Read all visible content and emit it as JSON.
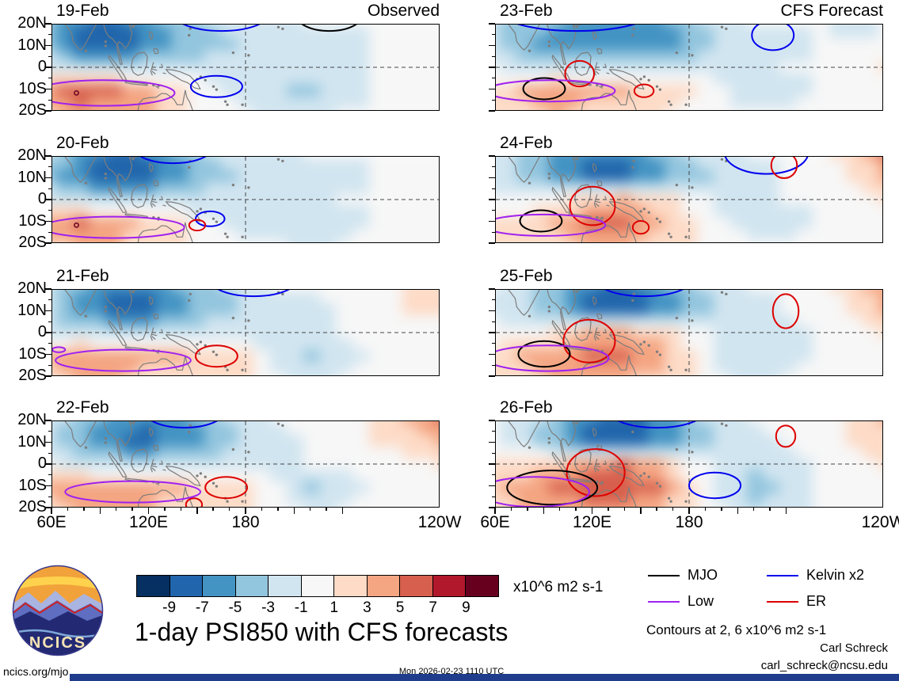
{
  "title": "1-day PSI850 with CFS forecasts",
  "units_label": "x10^6 m2 s-1",
  "contour_note": "Contours at 2, 6 x10^6 m2 s-1",
  "credits": {
    "name": "Carl Schreck",
    "email": "carl_schreck@ncsu.edu"
  },
  "footer": {
    "site": "ncics.org/mjo",
    "timestamp": "Mon 2026-02-23 1110 UTC"
  },
  "logo": {
    "text": "NCICS"
  },
  "meta": {
    "observed_label": "Observed",
    "forecast_label": "CFS Forecast"
  },
  "legend": {
    "items": [
      {
        "label": "MJO",
        "color": "#000000"
      },
      {
        "label": "Kelvin x2",
        "color": "#0000ee"
      },
      {
        "label": "Low",
        "color": "#a020f0"
      },
      {
        "label": "ER",
        "color": "#dd0000"
      }
    ]
  },
  "wave_colors": {
    "MJO": "#000000",
    "Low": "#a020f0",
    "Kelvin": "#0000ee",
    "ER": "#dd0000"
  },
  "colorbar": {
    "tick_labels": [
      "-9",
      "-7",
      "-5",
      "-3",
      "-1",
      "1",
      "3",
      "5",
      "7",
      "9"
    ],
    "colors": [
      "#053061",
      "#2166ac",
      "#4393c3",
      "#92c5de",
      "#d1e5f0",
      "#f7f7f7",
      "#fddbc7",
      "#f4a582",
      "#d6604d",
      "#b2182b",
      "#67001f"
    ]
  },
  "axes": {
    "lat_labels": [
      "20N",
      "10N",
      "0",
      "10S",
      "20S"
    ],
    "lat_pcts": [
      0,
      25,
      50,
      75,
      100
    ],
    "lon_labels": [
      "60E",
      "120E",
      "180",
      "120W"
    ],
    "lon_pcts": [
      0,
      25,
      50,
      100
    ]
  },
  "chart_data": {
    "type": "heatmap",
    "variable": "PSI850 streamfunction anomaly",
    "units": "x10^6 m2 s-1",
    "lon_grid": [
      60,
      75,
      90,
      105,
      120,
      135,
      150,
      165,
      180,
      195,
      210,
      225,
      240
    ],
    "lat_grid": [
      20,
      10,
      0,
      -10,
      -20
    ],
    "contour_levels": [
      2,
      6
    ],
    "panels": [
      {
        "date": "19-Feb",
        "kind": "Observed",
        "values": [
          [
            -4,
            -7,
            -8,
            -6,
            -4,
            -3,
            -2,
            -2,
            -1,
            -1,
            -1,
            0,
            0
          ],
          [
            -4,
            -8,
            -9,
            -7,
            -5,
            -4,
            -3,
            -2,
            -2,
            -2,
            -1,
            -1,
            0
          ],
          [
            -2,
            -3,
            -3,
            -3,
            -2,
            -2,
            -2,
            -2,
            -2,
            -2,
            -1,
            0,
            0
          ],
          [
            4,
            6,
            5,
            3,
            1,
            -1,
            -2,
            -3,
            -4,
            -2,
            -1,
            0,
            0
          ],
          [
            2,
            4,
            4,
            3,
            1,
            0,
            -1,
            -2,
            -2,
            -1,
            -1,
            0,
            0
          ]
        ],
        "contours": [
          {
            "wave": "Kelvin",
            "lon": 162,
            "lat": -9,
            "rlon": 16,
            "rlat": 5
          },
          {
            "wave": "Kelvin",
            "lon": 165,
            "lat": 24,
            "rlon": 28,
            "rlat": 7
          },
          {
            "wave": "Low",
            "lon": 92,
            "lat": -12,
            "rlon": 44,
            "rlat": 6
          },
          {
            "wave": "MJO",
            "lon": 232,
            "lat": 24,
            "rlon": 20,
            "rlat": 7
          }
        ],
        "spots": [
          [
            75,
            -12
          ]
        ]
      },
      {
        "date": "20-Feb",
        "kind": "Observed",
        "values": [
          [
            -3,
            -6,
            -8,
            -7,
            -5,
            -3,
            -2,
            -2,
            -1,
            -1,
            -1,
            0,
            0
          ],
          [
            -4,
            -7,
            -9,
            -8,
            -6,
            -4,
            -3,
            -2,
            -2,
            -2,
            -1,
            0,
            0
          ],
          [
            -2,
            -3,
            -3,
            -3,
            -3,
            -2,
            -2,
            -2,
            -2,
            -1,
            -1,
            0,
            0
          ],
          [
            4,
            5,
            4,
            2,
            1,
            -1,
            -2,
            -2,
            -3,
            -2,
            -1,
            0,
            0
          ],
          [
            2,
            3,
            3,
            2,
            1,
            0,
            -1,
            -1,
            -2,
            -1,
            0,
            0,
            0
          ]
        ],
        "contours": [
          {
            "wave": "Kelvin",
            "lon": 135,
            "lat": 24,
            "rlon": 24,
            "rlat": 7
          },
          {
            "wave": "Kelvin",
            "lon": 158,
            "lat": -9,
            "rlon": 9,
            "rlat": 3.5
          },
          {
            "wave": "ER",
            "lon": 150,
            "lat": -12,
            "rlon": 5,
            "rlat": 2.5
          },
          {
            "wave": "Low",
            "lon": 98,
            "lat": -13,
            "rlon": 44,
            "rlat": 5
          }
        ],
        "spots": [
          [
            75,
            -12
          ]
        ]
      },
      {
        "date": "21-Feb",
        "kind": "Observed",
        "values": [
          [
            -3,
            -5,
            -7,
            -7,
            -5,
            -4,
            -2,
            -1,
            -1,
            0,
            0,
            1,
            1
          ],
          [
            -3,
            -6,
            -8,
            -8,
            -6,
            -4,
            -3,
            -2,
            -2,
            -1,
            0,
            1,
            1
          ],
          [
            -2,
            -2,
            -3,
            -3,
            -3,
            -2,
            -2,
            -2,
            -2,
            -1,
            0,
            0,
            0
          ],
          [
            3,
            4,
            4,
            3,
            3,
            2,
            1,
            -2,
            -4,
            -2,
            -1,
            0,
            0
          ],
          [
            2,
            3,
            3,
            2,
            2,
            2,
            1,
            -1,
            -2,
            -1,
            0,
            0,
            0
          ]
        ],
        "contours": [
          {
            "wave": "Kelvin",
            "lon": 185,
            "lat": 24,
            "rlon": 26,
            "rlat": 7
          },
          {
            "wave": "ER",
            "lon": 162,
            "lat": -11,
            "rlon": 13,
            "rlat": 5
          },
          {
            "wave": "Low",
            "lon": 104,
            "lat": -13,
            "rlon": 42,
            "rlat": 5
          },
          {
            "wave": "Low",
            "lon": 64,
            "lat": -8,
            "rlon": 4,
            "rlat": 1.2
          }
        ],
        "spots": []
      },
      {
        "date": "22-Feb",
        "kind": "Observed",
        "values": [
          [
            -2,
            -4,
            -6,
            -7,
            -6,
            -4,
            -2,
            -1,
            0,
            0,
            1,
            3,
            5
          ],
          [
            -3,
            -5,
            -7,
            -8,
            -6,
            -5,
            -3,
            -2,
            -1,
            0,
            1,
            2,
            3
          ],
          [
            -1,
            -2,
            -3,
            -3,
            -3,
            -2,
            -2,
            -2,
            -1,
            -1,
            0,
            0,
            1
          ],
          [
            3,
            4,
            4,
            3,
            3,
            2,
            2,
            -1,
            -4,
            -2,
            -1,
            0,
            0
          ],
          [
            2,
            3,
            3,
            3,
            2,
            2,
            1,
            0,
            -2,
            -1,
            0,
            0,
            0
          ]
        ],
        "contours": [
          {
            "wave": "Kelvin",
            "lon": 142,
            "lat": 24,
            "rlon": 24,
            "rlat": 7
          },
          {
            "wave": "ER",
            "lon": 168,
            "lat": -11,
            "rlon": 13,
            "rlat": 5
          },
          {
            "wave": "ER",
            "lon": 148,
            "lat": -19,
            "rlon": 5,
            "rlat": 3
          },
          {
            "wave": "Low",
            "lon": 110,
            "lat": -13,
            "rlon": 42,
            "rlat": 5
          }
        ],
        "spots": []
      },
      {
        "date": "23-Feb",
        "kind": "CFS Forecast",
        "values": [
          [
            -3,
            -4,
            -5,
            -6,
            -7,
            -6,
            -4,
            -2,
            -1,
            -1,
            -1,
            -2,
            -1
          ],
          [
            -3,
            -5,
            -6,
            -7,
            -7,
            -6,
            -5,
            -3,
            -2,
            -2,
            -1,
            -1,
            -1
          ],
          [
            -1,
            -2,
            -2,
            -2,
            -2,
            -2,
            -2,
            -2,
            -2,
            -1,
            -1,
            0,
            1
          ],
          [
            2,
            3,
            4,
            3,
            3,
            2,
            1,
            -1,
            -2,
            -2,
            -1,
            0,
            0
          ],
          [
            1,
            2,
            3,
            2,
            2,
            1,
            0,
            -1,
            -1,
            -1,
            0,
            0,
            0
          ]
        ],
        "contours": [
          {
            "wave": "Kelvin",
            "lon": 110,
            "lat": 25,
            "rlon": 45,
            "rlat": 8
          },
          {
            "wave": "Kelvin",
            "lon": 232,
            "lat": 15,
            "rlon": 13,
            "rlat": 7
          },
          {
            "wave": "ER",
            "lon": 112,
            "lat": -3,
            "rlon": 9,
            "rlat": 6
          },
          {
            "wave": "ER",
            "lon": 152,
            "lat": -11,
            "rlon": 6,
            "rlat": 3
          },
          {
            "wave": "MJO",
            "lon": 90,
            "lat": -10,
            "rlon": 13,
            "rlat": 5
          },
          {
            "wave": "Low",
            "lon": 94,
            "lat": -11,
            "rlon": 40,
            "rlat": 5
          }
        ],
        "spots": []
      },
      {
        "date": "24-Feb",
        "kind": "CFS Forecast",
        "values": [
          [
            -2,
            -4,
            -6,
            -7,
            -7,
            -5,
            -3,
            -2,
            -1,
            -1,
            0,
            2,
            5
          ],
          [
            -2,
            -4,
            -6,
            -8,
            -8,
            -6,
            -4,
            -3,
            -2,
            -1,
            0,
            1,
            3
          ],
          [
            -1,
            -1,
            0,
            2,
            3,
            2,
            0,
            -2,
            -2,
            -1,
            -1,
            0,
            1
          ],
          [
            1,
            2,
            3,
            5,
            5,
            3,
            1,
            -1,
            -2,
            -2,
            -1,
            0,
            0
          ],
          [
            1,
            2,
            2,
            3,
            3,
            2,
            1,
            0,
            -1,
            -1,
            0,
            0,
            0
          ]
        ],
        "contours": [
          {
            "wave": "Kelvin",
            "lon": 228,
            "lat": 22,
            "rlon": 26,
            "rlat": 10
          },
          {
            "wave": "ER",
            "lon": 120,
            "lat": -3,
            "rlon": 14,
            "rlat": 9
          },
          {
            "wave": "ER",
            "lon": 150,
            "lat": -13,
            "rlon": 5,
            "rlat": 3
          },
          {
            "wave": "ER",
            "lon": 239,
            "lat": 16,
            "rlon": 8,
            "rlat": 6
          },
          {
            "wave": "MJO",
            "lon": 88,
            "lat": -10,
            "rlon": 13,
            "rlat": 5
          },
          {
            "wave": "Low",
            "lon": 90,
            "lat": -12,
            "rlon": 38,
            "rlat": 5
          }
        ],
        "spots": []
      },
      {
        "date": "25-Feb",
        "kind": "CFS Forecast",
        "values": [
          [
            -1,
            -3,
            -5,
            -7,
            -8,
            -6,
            -4,
            -2,
            -1,
            -1,
            0,
            2,
            4
          ],
          [
            -2,
            -3,
            -5,
            -8,
            -8,
            -7,
            -5,
            -3,
            -2,
            -1,
            0,
            1,
            3
          ],
          [
            0,
            0,
            1,
            3,
            3,
            2,
            0,
            -2,
            -3,
            -2,
            -1,
            0,
            1
          ],
          [
            1,
            3,
            4,
            5,
            5,
            4,
            1,
            -2,
            -3,
            -2,
            -1,
            0,
            0
          ],
          [
            1,
            2,
            3,
            3,
            3,
            2,
            1,
            -1,
            -2,
            -1,
            0,
            0,
            0
          ]
        ],
        "contours": [
          {
            "wave": "Kelvin",
            "lon": 152,
            "lat": 25,
            "rlon": 30,
            "rlat": 8
          },
          {
            "wave": "ER",
            "lon": 118,
            "lat": -4,
            "rlon": 16,
            "rlat": 10
          },
          {
            "wave": "ER",
            "lon": 240,
            "lat": 10,
            "rlon": 8,
            "rlat": 8
          },
          {
            "wave": "MJO",
            "lon": 90,
            "lat": -10,
            "rlon": 16,
            "rlat": 6
          },
          {
            "wave": "Low",
            "lon": 92,
            "lat": -12,
            "rlon": 38,
            "rlat": 6
          }
        ],
        "spots": []
      },
      {
        "date": "26-Feb",
        "kind": "CFS Forecast",
        "values": [
          [
            -1,
            -2,
            -4,
            -7,
            -8,
            -7,
            -4,
            -2,
            -1,
            0,
            0,
            1,
            3
          ],
          [
            -1,
            -2,
            -5,
            -8,
            -9,
            -7,
            -5,
            -3,
            -2,
            -1,
            0,
            1,
            2
          ],
          [
            1,
            1,
            2,
            4,
            5,
            3,
            0,
            -2,
            -3,
            -2,
            -1,
            0,
            1
          ],
          [
            2,
            4,
            5,
            6,
            6,
            5,
            1,
            -2,
            -4,
            -3,
            -1,
            0,
            0
          ],
          [
            2,
            3,
            4,
            4,
            4,
            3,
            1,
            -1,
            -3,
            -2,
            -1,
            0,
            0
          ]
        ],
        "contours": [
          {
            "wave": "Kelvin",
            "lon": 160,
            "lat": 25,
            "rlon": 30,
            "rlat": 8
          },
          {
            "wave": "Kelvin",
            "lon": 196,
            "lat": -10,
            "rlon": 16,
            "rlat": 6
          },
          {
            "wave": "ER",
            "lon": 122,
            "lat": -4,
            "rlon": 18,
            "rlat": 11
          },
          {
            "wave": "ER",
            "lon": 240,
            "lat": 13,
            "rlon": 6,
            "rlat": 5
          },
          {
            "wave": "MJO",
            "lon": 95,
            "lat": -11,
            "rlon": 28,
            "rlat": 8
          },
          {
            "wave": "Low",
            "lon": 84,
            "lat": -13,
            "rlon": 34,
            "rlat": 7
          }
        ],
        "spots": []
      }
    ]
  }
}
